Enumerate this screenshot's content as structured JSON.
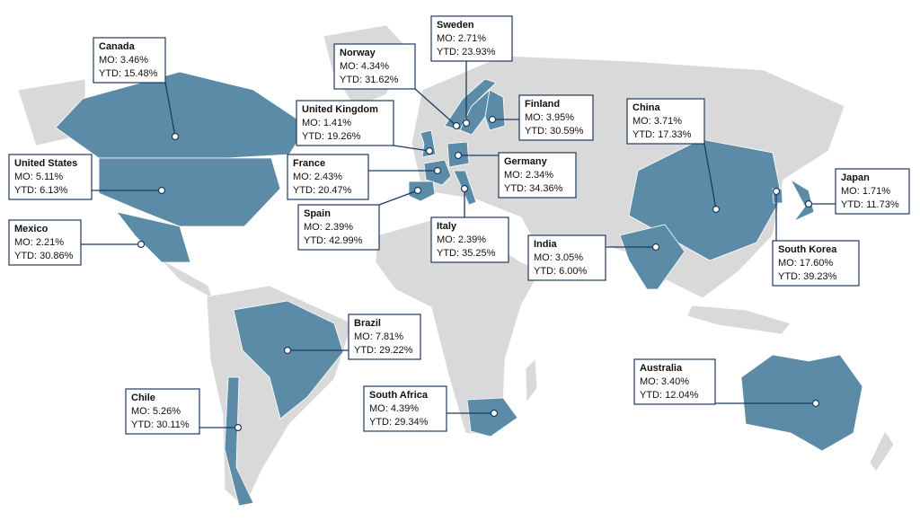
{
  "countries": [
    {
      "name": "Canada",
      "mo": "MO: 3.46%",
      "ytd": "YTD: 15.48%"
    },
    {
      "name": "United States",
      "mo": "MO: 5.11%",
      "ytd": "YTD: 6.13%"
    },
    {
      "name": "Mexico",
      "mo": "MO: 2.21%",
      "ytd": "YTD: 30.86%"
    },
    {
      "name": "Brazil",
      "mo": "MO: 7.81%",
      "ytd": "YTD: 29.22%"
    },
    {
      "name": "Chile",
      "mo": "MO: 5.26%",
      "ytd": "YTD: 30.11%"
    },
    {
      "name": "South Africa",
      "mo": "MO: 4.39%",
      "ytd": "YTD: 29.34%"
    },
    {
      "name": "United Kingdom",
      "mo": "MO: 1.41%",
      "ytd": "YTD: 19.26%"
    },
    {
      "name": "France",
      "mo": "MO: 2.43%",
      "ytd": "YTD: 20.47%"
    },
    {
      "name": "Spain",
      "mo": "MO: 2.39%",
      "ytd": "YTD: 42.99%"
    },
    {
      "name": "Norway",
      "mo": "MO: 4.34%",
      "ytd": "YTD: 31.62%"
    },
    {
      "name": "Sweden",
      "mo": "MO: 2.71%",
      "ytd": "YTD: 23.93%"
    },
    {
      "name": "Finland",
      "mo": "MO: 3.95%",
      "ytd": "YTD: 30.59%"
    },
    {
      "name": "Germany",
      "mo": "MO: 2.34%",
      "ytd": "YTD: 34.36%"
    },
    {
      "name": "Italy",
      "mo": "MO: 2.39%",
      "ytd": "YTD: 35.25%"
    },
    {
      "name": "India",
      "mo": "MO: 3.05%",
      "ytd": "YTD: 6.00%"
    },
    {
      "name": "China",
      "mo": "MO: 3.71%",
      "ytd": "YTD: 17.33%"
    },
    {
      "name": "Japan",
      "mo": "MO: 1.71%",
      "ytd": "YTD: 11.73%"
    },
    {
      "name": "South Korea",
      "mo": "MO: 17.60%",
      "ytd": "YTD: 39.23%"
    },
    {
      "name": "Australia",
      "mo": "MO: 3.40%",
      "ytd": "YTD: 12.04%"
    }
  ]
}
